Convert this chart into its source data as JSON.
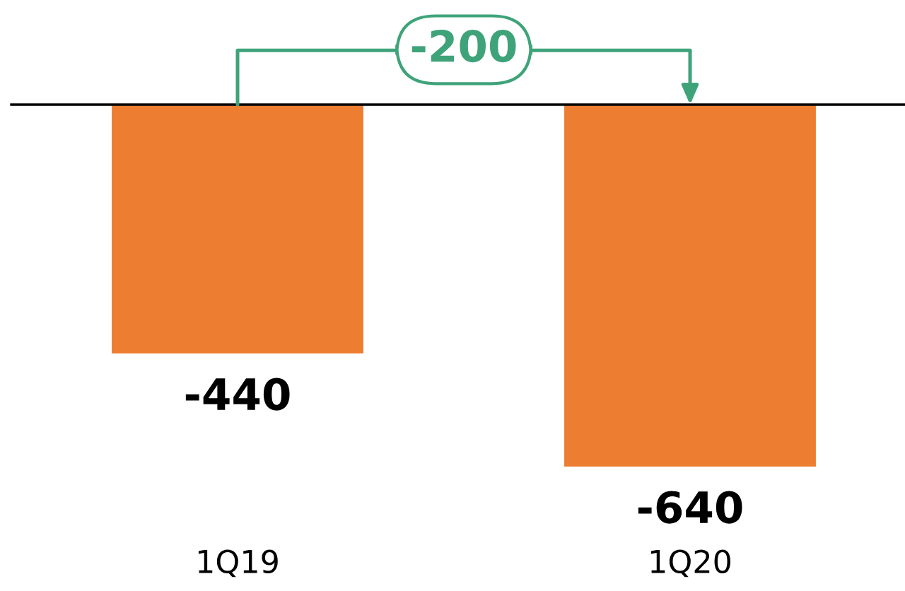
{
  "chart_data": {
    "type": "bar",
    "categories": [
      "1Q19",
      "1Q20"
    ],
    "series": [
      {
        "color": "#ed7d31",
        "values": [
          -440,
          -640
        ]
      }
    ],
    "data_labels": true,
    "annotations": [
      "-200"
    ],
    "grid": false,
    "legend": false
  }
}
